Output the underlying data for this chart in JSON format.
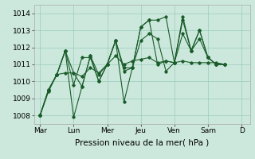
{
  "background_color": "#cce8dc",
  "grid_color": "#99ccbb",
  "line_color": "#1a5c2a",
  "xlabel": "Pression niveau de la mer( hPa )",
  "ylim": [
    1007.5,
    1014.5
  ],
  "day_labels": [
    "Mar",
    "Lun",
    "Mer",
    "Jeu",
    "Ven",
    "Sam",
    "D"
  ],
  "day_positions": [
    0,
    48,
    96,
    144,
    192,
    240,
    288
  ],
  "xlim": [
    -8,
    300
  ],
  "series": [
    {
      "x": [
        0,
        12,
        24,
        36,
        48,
        60,
        72,
        84,
        96,
        108,
        120,
        132,
        144,
        156,
        168,
        180,
        192,
        204,
        216,
        228,
        240,
        252,
        264
      ],
      "y": [
        1008.0,
        1009.4,
        1010.4,
        1010.5,
        1010.5,
        1010.3,
        1010.8,
        1010.5,
        1011.0,
        1011.5,
        1011.0,
        1011.2,
        1011.3,
        1011.4,
        1011.1,
        1011.2,
        1011.1,
        1011.2,
        1011.1,
        1011.1,
        1011.1,
        1011.1,
        1011.0
      ]
    },
    {
      "x": [
        0,
        12,
        24,
        36,
        48,
        60,
        72,
        84,
        96,
        108,
        120,
        132,
        144,
        156,
        168,
        180,
        192,
        204,
        216,
        228,
        240,
        252,
        264
      ],
      "y": [
        1008.0,
        1009.5,
        1010.4,
        1011.8,
        1010.5,
        1009.7,
        1011.5,
        1010.4,
        1011.0,
        1012.4,
        1010.6,
        1010.8,
        1013.2,
        1013.6,
        1011.0,
        1011.2,
        1011.1,
        1013.6,
        1011.8,
        1013.0,
        1011.4,
        1011.0,
        1011.0
      ]
    },
    {
      "x": [
        0,
        12,
        24,
        36,
        48,
        60,
        72,
        84,
        96,
        108,
        120,
        132,
        144,
        156,
        168,
        180,
        192,
        204,
        216,
        228,
        240,
        252,
        264
      ],
      "y": [
        1008.0,
        1009.5,
        1010.4,
        1011.8,
        1007.9,
        1009.7,
        1011.5,
        1010.0,
        1011.0,
        1012.4,
        1008.8,
        1010.8,
        1012.4,
        1012.8,
        1012.5,
        1010.6,
        1011.1,
        1012.8,
        1011.8,
        1013.0,
        1011.4,
        1011.0,
        1011.0
      ]
    },
    {
      "x": [
        0,
        12,
        24,
        36,
        48,
        60,
        72,
        84,
        96,
        108,
        120,
        132,
        144,
        156,
        168,
        180,
        192,
        204,
        216,
        228,
        240,
        252,
        264
      ],
      "y": [
        1008.0,
        1009.5,
        1010.4,
        1011.8,
        1009.8,
        1011.4,
        1011.4,
        1010.0,
        1011.0,
        1012.4,
        1010.8,
        1010.8,
        1013.2,
        1013.6,
        1013.6,
        1013.8,
        1011.1,
        1013.8,
        1011.8,
        1012.5,
        1011.4,
        1011.0,
        1011.0
      ]
    }
  ],
  "xlabel_fontsize": 7.5,
  "tick_fontsize": 6.5
}
